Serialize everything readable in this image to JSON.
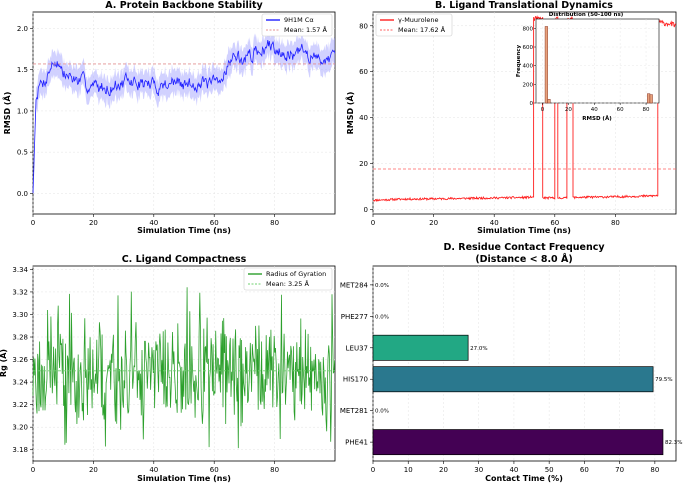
{
  "chart_data": [
    {
      "id": "A",
      "type": "line",
      "title": "A. Protein Backbone Stability",
      "xlabel": "Simulation Time (ns)",
      "ylabel": "RMSD (Å)",
      "xlim": [
        0,
        100
      ],
      "ylim": [
        -0.25,
        2.2
      ],
      "xticks": [
        0,
        20,
        40,
        60,
        80
      ],
      "yticks": [
        0.0,
        0.5,
        1.0,
        1.5,
        2.0
      ],
      "ytick_labels": [
        "0.0",
        "0.5",
        "1.0",
        "1.5",
        "2.0"
      ],
      "legend_position": "top-right",
      "color": "#1f1fff",
      "series": [
        {
          "name": "9H1M Cα",
          "x": [
            0,
            1,
            2,
            4,
            6,
            8,
            10,
            14,
            18,
            22,
            26,
            30,
            34,
            38,
            42,
            46,
            50,
            54,
            58,
            62,
            64,
            66,
            70,
            74,
            78,
            82,
            86,
            90,
            94,
            98,
            100
          ],
          "values": [
            0.0,
            1.15,
            1.3,
            1.38,
            1.55,
            1.62,
            1.45,
            1.38,
            1.32,
            1.28,
            1.3,
            1.33,
            1.35,
            1.32,
            1.3,
            1.36,
            1.3,
            1.35,
            1.32,
            1.32,
            1.55,
            1.65,
            1.62,
            1.72,
            1.78,
            1.76,
            1.68,
            1.72,
            1.62,
            1.65,
            1.6
          ]
        },
        {
          "name": "Mean: 1.57 Å",
          "value": 1.57,
          "style": "dashed"
        }
      ]
    },
    {
      "id": "B",
      "type": "line",
      "title": "B. Ligand Translational Dynamics",
      "xlabel": "Simulation Time (ns)",
      "ylabel": "RMSD (Å)",
      "xlim": [
        0,
        100
      ],
      "ylim": [
        -2,
        86
      ],
      "xticks": [
        0,
        20,
        40,
        60,
        80
      ],
      "yticks": [
        0,
        20,
        40,
        60,
        80
      ],
      "legend_position": "top-left",
      "color": "#ff2020",
      "series": [
        {
          "name": "γ-Muurolene",
          "segments": [
            {
              "x": [
                0,
                10,
                20,
                30,
                40,
                50,
                53
              ],
              "values": [
                4.0,
                4.5,
                4.6,
                4.8,
                5.0,
                5.2,
                5.4
              ]
            },
            {
              "x": [
                53,
                56
              ],
              "values": [
                83,
                83
              ]
            },
            {
              "x": [
                56,
                58,
                60
              ],
              "values": [
                5,
                5,
                5
              ]
            },
            {
              "x": [
                60,
                61
              ],
              "values": [
                83,
                83
              ]
            },
            {
              "x": [
                61,
                64
              ],
              "values": [
                5,
                5
              ]
            },
            {
              "x": [
                64,
                66
              ],
              "values": [
                83,
                83
              ]
            },
            {
              "x": [
                66,
                70,
                80,
                90,
                94
              ],
              "values": [
                5.2,
                5.3,
                5.5,
                5.8,
                6.0
              ]
            },
            {
              "x": [
                94,
                96,
                98,
                100
              ],
              "values": [
                82,
                81,
                81,
                80
              ]
            }
          ]
        },
        {
          "name": "Mean: 17.62 Å",
          "value": 17.62,
          "style": "dashed"
        }
      ],
      "inset": {
        "type": "histogram",
        "title": "Distribution (50-100 ns)",
        "xlabel": "RMSD (Å)",
        "ylabel": "Frequency",
        "xlim": [
          -5,
          90
        ],
        "ylim": [
          0,
          900
        ],
        "xticks": [
          0,
          20,
          40,
          60,
          80
        ],
        "yticks": [
          0,
          200,
          400,
          600,
          800
        ],
        "bins": [
          {
            "x0": 2,
            "x1": 4,
            "count": 820
          },
          {
            "x0": 4,
            "x1": 6,
            "count": 40
          },
          {
            "x0": 81,
            "x1": 83,
            "count": 100
          },
          {
            "x0": 83,
            "x1": 85,
            "count": 90
          }
        ]
      }
    },
    {
      "id": "C",
      "type": "line",
      "title": "C. Ligand Compactness",
      "xlabel": "Simulation Time (ns)",
      "ylabel": "Rg (Å)",
      "xlim": [
        0,
        100
      ],
      "ylim": [
        3.17,
        3.343
      ],
      "xticks": [
        0,
        20,
        40,
        60,
        80
      ],
      "yticks": [
        3.18,
        3.2,
        3.22,
        3.24,
        3.26,
        3.28,
        3.3,
        3.32,
        3.34
      ],
      "ytick_labels": [
        "3.18",
        "3.20",
        "3.22",
        "3.24",
        "3.26",
        "3.28",
        "3.30",
        "3.32",
        "3.34"
      ],
      "legend_position": "top-right",
      "color": "#2ca02c",
      "series": [
        {
          "name": "Radius of Gyration",
          "mean": 3.25,
          "min": 3.175,
          "max": 3.325
        },
        {
          "name": "Mean: 3.25 Å",
          "value": 3.25,
          "style": "dashed"
        }
      ]
    },
    {
      "id": "D",
      "type": "bar",
      "orientation": "horizontal",
      "title": "D. Residue Contact Frequency",
      "subtitle": "(Distance < 8.0 Å)",
      "xlabel": "Contact Time (%)",
      "ylabel": "",
      "xlim": [
        0,
        86
      ],
      "xticks": [
        0,
        10,
        20,
        30,
        40,
        50,
        60,
        70,
        80
      ],
      "categories": [
        "PHE41",
        "MET281",
        "HIS170",
        "LEU37",
        "PHE277",
        "MET284"
      ],
      "values": [
        82.3,
        0.0,
        79.5,
        27.0,
        0.0,
        0.0
      ],
      "labels": [
        "82.3%",
        "0.0%",
        "79.5%",
        "27.0%",
        "0.0%",
        "0.0%"
      ],
      "colors": [
        "#440154",
        "#414487",
        "#2a788e",
        "#22a884",
        "#7ad151",
        "#fde725"
      ]
    }
  ]
}
